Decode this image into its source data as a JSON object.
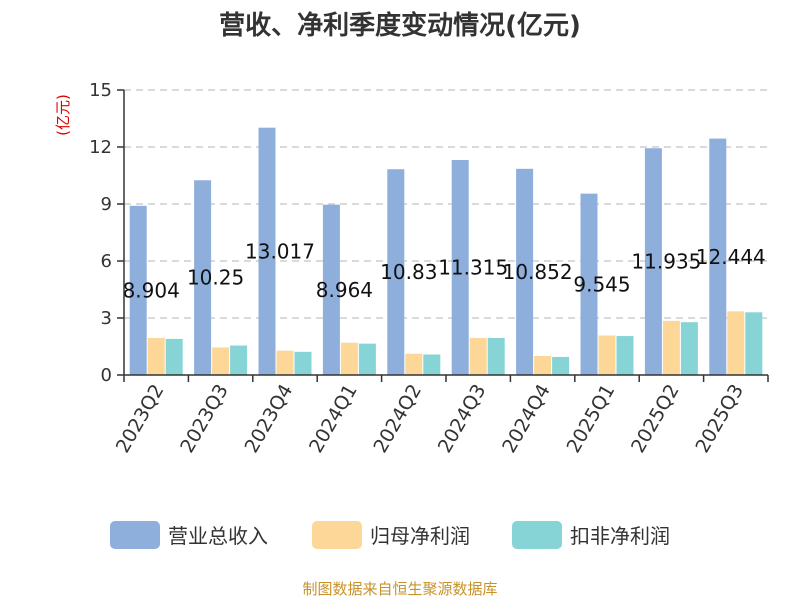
{
  "chart_data": {
    "type": "bar",
    "title": "营收、净利季度变动情况(亿元)",
    "ylabel": "(亿元)",
    "xlabel": "",
    "ylim": [
      0,
      15
    ],
    "yticks": [
      0,
      3,
      6,
      9,
      12,
      15
    ],
    "grid": true,
    "legend_position": "bottom",
    "categories": [
      "2023Q2",
      "2023Q3",
      "2023Q4",
      "2024Q1",
      "2024Q2",
      "2024Q3",
      "2024Q4",
      "2025Q1",
      "2025Q2",
      "2025Q3"
    ],
    "series": [
      {
        "name": "营业总收入",
        "color": "#8eaedc",
        "values": [
          8.904,
          10.25,
          13.017,
          8.964,
          10.83,
          11.315,
          10.852,
          9.545,
          11.935,
          12.444
        ],
        "labels": [
          "8.904",
          "10.25",
          "13.017",
          "8.964",
          "10.83",
          "11.315",
          "10.852",
          "9.545",
          "11.935",
          "12.444"
        ]
      },
      {
        "name": "归母净利润",
        "color": "#fdd798",
        "values": [
          1.95,
          1.45,
          1.28,
          1.7,
          1.12,
          1.95,
          1.0,
          2.08,
          2.85,
          3.35
        ]
      },
      {
        "name": "扣非净利润",
        "color": "#86d4d6",
        "values": [
          1.9,
          1.55,
          1.22,
          1.65,
          1.08,
          1.95,
          0.95,
          2.05,
          2.78,
          3.3
        ]
      }
    ]
  },
  "source": "制图数据来自恒生聚源数据库"
}
